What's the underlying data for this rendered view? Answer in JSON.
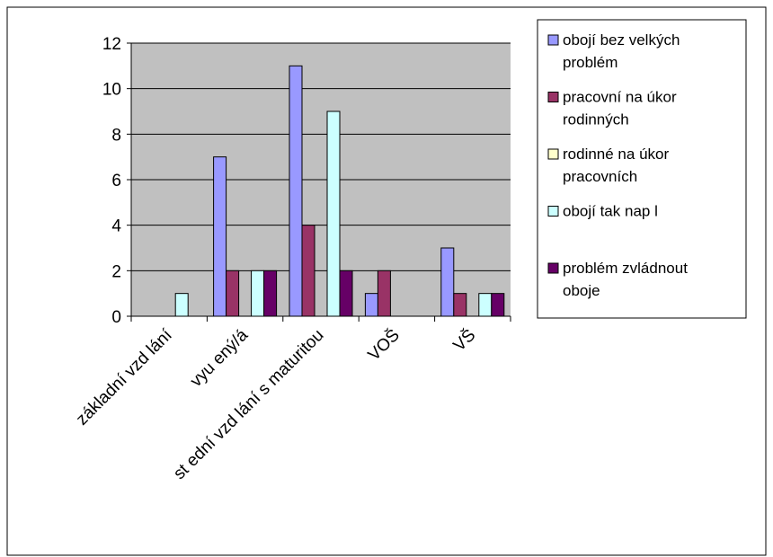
{
  "colors": {
    "plot_background": "#c0c0c0",
    "frame": "#000000",
    "background": "#ffffff"
  },
  "chart_data": {
    "type": "bar",
    "title": "",
    "xlabel": "",
    "ylabel": "",
    "ylim": [
      0,
      12
    ],
    "y_ticks": [
      "0",
      "2",
      "4",
      "6",
      "8",
      "10",
      "12"
    ],
    "grid": "horizontal",
    "legend_position": "right",
    "categories": [
      "základní vzd  lání",
      "vyu  ený/á",
      "st  ední vzd  lání s maturitou",
      "VOŠ",
      "VŠ"
    ],
    "series": [
      {
        "name": "obojí bez velkých problém",
        "legend_lines": [
          "obojí bez velkých",
          "problém"
        ],
        "color": "#9999ff",
        "values": [
          0,
          7,
          11,
          1,
          3
        ]
      },
      {
        "name": "pracovní na úkor rodinných",
        "legend_lines": [
          "pracovní na úkor",
          "rodinných"
        ],
        "color": "#993366",
        "values": [
          0,
          2,
          4,
          2,
          1
        ]
      },
      {
        "name": "rodinné na úkor pracovních",
        "legend_lines": [
          "rodinné na úkor",
          "pracovních"
        ],
        "color": "#ffffcc",
        "values": [
          0,
          0,
          0,
          0,
          0
        ]
      },
      {
        "name": "obojí tak nap  l",
        "legend_lines": [
          "obojí tak nap  l"
        ],
        "color": "#ccffff",
        "values": [
          1,
          2,
          9,
          0,
          1
        ]
      },
      {
        "name": "problém zvládnout oboje",
        "legend_lines": [
          "problém zvládnout",
          "oboje"
        ],
        "color": "#660066",
        "values": [
          0,
          2,
          2,
          0,
          1
        ]
      }
    ]
  }
}
